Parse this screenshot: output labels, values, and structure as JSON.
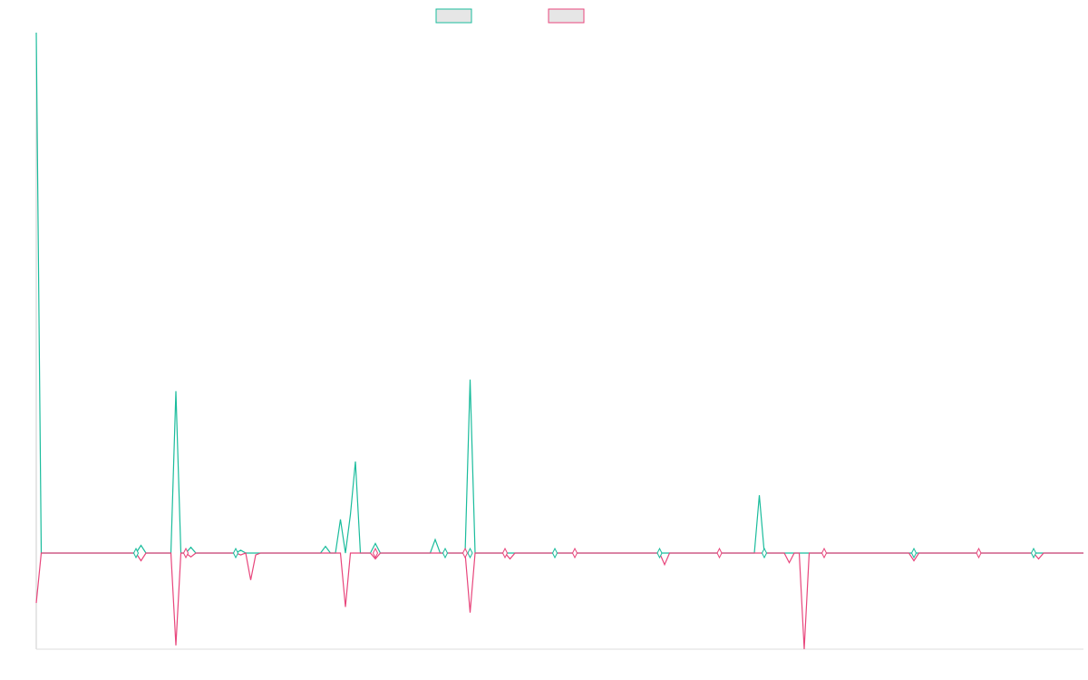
{
  "chart_data": {
    "type": "line",
    "title": "",
    "xlabel": "",
    "ylabel": "",
    "grid": false,
    "legend_position": "top-center",
    "x_count": 210,
    "y_range": [
      -100,
      540
    ],
    "series": [
      {
        "color": "#1abc9c",
        "legend_fill": "#e6e6e6",
        "points": [
          [
            0,
            540
          ],
          [
            1,
            0
          ],
          [
            20,
            0
          ],
          [
            21,
            8
          ],
          [
            22,
            0
          ],
          [
            23,
            0
          ],
          [
            24,
            0
          ],
          [
            27,
            0
          ],
          [
            28,
            168
          ],
          [
            29,
            0
          ],
          [
            30,
            0
          ],
          [
            31,
            6
          ],
          [
            32,
            0
          ],
          [
            40,
            0
          ],
          [
            41,
            3
          ],
          [
            42,
            0
          ],
          [
            44,
            0
          ],
          [
            57,
            0
          ],
          [
            58,
            7
          ],
          [
            59,
            0
          ],
          [
            60,
            0
          ],
          [
            61,
            35
          ],
          [
            62,
            0
          ],
          [
            63,
            40
          ],
          [
            64,
            95
          ],
          [
            65,
            0
          ],
          [
            66,
            0
          ],
          [
            67,
            0
          ],
          [
            68,
            10
          ],
          [
            69,
            0
          ],
          [
            70,
            0
          ],
          [
            71,
            0
          ],
          [
            72,
            0
          ],
          [
            73,
            0
          ],
          [
            74,
            0
          ],
          [
            75,
            0
          ],
          [
            76,
            0
          ],
          [
            77,
            0
          ],
          [
            78,
            0
          ],
          [
            79,
            0
          ],
          [
            80,
            14
          ],
          [
            81,
            0
          ],
          [
            82,
            0
          ],
          [
            83,
            0
          ],
          [
            84,
            0
          ],
          [
            85,
            0
          ],
          [
            86,
            0
          ],
          [
            87,
            180
          ],
          [
            88,
            0
          ],
          [
            89,
            0
          ],
          [
            90,
            0
          ],
          [
            91,
            0
          ],
          [
            92,
            0
          ],
          [
            93,
            0
          ],
          [
            94,
            0
          ],
          [
            95,
            0
          ],
          [
            96,
            0
          ],
          [
            97,
            0
          ],
          [
            98,
            0
          ],
          [
            99,
            0
          ],
          [
            100,
            0
          ],
          [
            101,
            0
          ],
          [
            102,
            0
          ],
          [
            103,
            0
          ],
          [
            104,
            0
          ],
          [
            105,
            0
          ],
          [
            106,
            0
          ],
          [
            107,
            0
          ],
          [
            108,
            0
          ],
          [
            109,
            0
          ],
          [
            110,
            0
          ],
          [
            111,
            0
          ],
          [
            112,
            0
          ],
          [
            113,
            0
          ],
          [
            114,
            0
          ],
          [
            115,
            0
          ],
          [
            116,
            0
          ],
          [
            117,
            0
          ],
          [
            118,
            0
          ],
          [
            119,
            0
          ],
          [
            120,
            0
          ],
          [
            121,
            0
          ],
          [
            122,
            0
          ],
          [
            123,
            0
          ],
          [
            124,
            0
          ],
          [
            125,
            0
          ],
          [
            126,
            0
          ],
          [
            127,
            0
          ],
          [
            128,
            0
          ],
          [
            129,
            0
          ],
          [
            130,
            0
          ],
          [
            131,
            0
          ],
          [
            132,
            0
          ],
          [
            133,
            0
          ],
          [
            134,
            0
          ],
          [
            135,
            0
          ],
          [
            136,
            0
          ],
          [
            137,
            0
          ],
          [
            138,
            0
          ],
          [
            139,
            0
          ],
          [
            140,
            0
          ],
          [
            141,
            0
          ],
          [
            142,
            0
          ],
          [
            143,
            0
          ],
          [
            144,
            0
          ],
          [
            145,
            60
          ],
          [
            146,
            0
          ],
          [
            147,
            0
          ],
          [
            148,
            0
          ],
          [
            149,
            0
          ],
          [
            150,
            0
          ],
          [
            151,
            0
          ],
          [
            152,
            0
          ],
          [
            153,
            0
          ],
          [
            154,
            0
          ],
          [
            155,
            0
          ],
          [
            156,
            0
          ],
          [
            157,
            0
          ],
          [
            158,
            0
          ],
          [
            159,
            0
          ],
          [
            160,
            0
          ],
          [
            161,
            0
          ],
          [
            162,
            0
          ],
          [
            163,
            0
          ],
          [
            164,
            0
          ],
          [
            165,
            0
          ],
          [
            166,
            0
          ],
          [
            167,
            0
          ],
          [
            168,
            0
          ],
          [
            169,
            0
          ],
          [
            170,
            0
          ],
          [
            171,
            0
          ],
          [
            172,
            0
          ],
          [
            173,
            0
          ],
          [
            174,
            0
          ],
          [
            175,
            0
          ],
          [
            176,
            0
          ],
          [
            177,
            0
          ],
          [
            178,
            0
          ],
          [
            179,
            0
          ],
          [
            180,
            0
          ],
          [
            181,
            0
          ],
          [
            182,
            0
          ],
          [
            183,
            0
          ],
          [
            184,
            0
          ],
          [
            185,
            0
          ],
          [
            186,
            0
          ],
          [
            187,
            0
          ],
          [
            188,
            0
          ],
          [
            189,
            0
          ],
          [
            190,
            0
          ],
          [
            191,
            0
          ],
          [
            192,
            0
          ],
          [
            193,
            0
          ],
          [
            194,
            0
          ],
          [
            195,
            0
          ],
          [
            196,
            0
          ],
          [
            197,
            0
          ],
          [
            198,
            0
          ],
          [
            199,
            0
          ],
          [
            200,
            0
          ],
          [
            201,
            0
          ],
          [
            202,
            0
          ],
          [
            203,
            0
          ],
          [
            204,
            0
          ],
          [
            205,
            0
          ],
          [
            206,
            0
          ],
          [
            207,
            0
          ],
          [
            208,
            0
          ],
          [
            209,
            0
          ],
          [
            210,
            0
          ]
        ]
      },
      {
        "color": "#e8467c",
        "legend_fill": "#e6e6e6",
        "points": [
          [
            0,
            -52
          ],
          [
            1,
            0
          ],
          [
            20,
            0
          ],
          [
            21,
            -8
          ],
          [
            22,
            0
          ],
          [
            27,
            0
          ],
          [
            28,
            -96
          ],
          [
            29,
            0
          ],
          [
            30,
            0
          ],
          [
            31,
            -4
          ],
          [
            32,
            0
          ],
          [
            40,
            0
          ],
          [
            41,
            -2
          ],
          [
            42,
            0
          ],
          [
            43,
            -28
          ],
          [
            44,
            -2
          ],
          [
            45,
            0
          ],
          [
            61,
            0
          ],
          [
            62,
            -56
          ],
          [
            63,
            0
          ],
          [
            67,
            0
          ],
          [
            68,
            -6
          ],
          [
            69,
            0
          ],
          [
            86,
            0
          ],
          [
            87,
            -62
          ],
          [
            88,
            0
          ],
          [
            94,
            0
          ],
          [
            95,
            -6
          ],
          [
            96,
            0
          ],
          [
            125,
            0
          ],
          [
            126,
            -12
          ],
          [
            127,
            0
          ],
          [
            150,
            0
          ],
          [
            151,
            -10
          ],
          [
            152,
            0
          ],
          [
            153,
            0
          ],
          [
            154,
            -100
          ],
          [
            155,
            0
          ],
          [
            175,
            0
          ],
          [
            176,
            -8
          ],
          [
            177,
            0
          ],
          [
            200,
            0
          ],
          [
            201,
            -6
          ],
          [
            202,
            0
          ],
          [
            210,
            0
          ]
        ]
      }
    ],
    "markers": [
      {
        "x": 20,
        "y": 0
      },
      {
        "x": 30,
        "y": 0
      },
      {
        "x": 40,
        "y": 0
      },
      {
        "x": 68,
        "y": 0
      },
      {
        "x": 82,
        "y": 0
      },
      {
        "x": 86,
        "y": 0
      },
      {
        "x": 87,
        "y": 0
      },
      {
        "x": 94,
        "y": 0
      },
      {
        "x": 104,
        "y": 0
      },
      {
        "x": 108,
        "y": 0
      },
      {
        "x": 125,
        "y": 0
      },
      {
        "x": 137,
        "y": 0
      },
      {
        "x": 146,
        "y": 0
      },
      {
        "x": 158,
        "y": 0
      },
      {
        "x": 176,
        "y": 0
      },
      {
        "x": 189,
        "y": 0
      },
      {
        "x": 200,
        "y": 0
      }
    ]
  }
}
